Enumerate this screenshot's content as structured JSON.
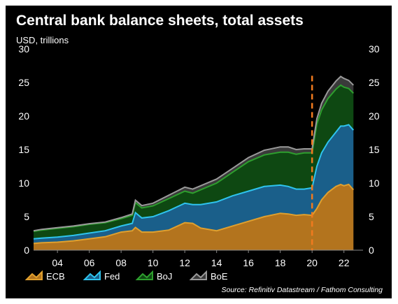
{
  "title": "Central bank balance sheets, total assets",
  "subtitle": "USD, trillions",
  "source": "Source: Refinitiv Datastream / Fathom Consulting",
  "colors": {
    "background": "#000000",
    "ECB": "#b3741e",
    "ECB_line": "#e0a02e",
    "Fed": "#1a5f8a",
    "Fed_line": "#2ec4ee",
    "BoJ": "#0e4812",
    "BoJ_line": "#2e9f2e",
    "BoE": "#3a3a3a",
    "BoE_line": "#9a9a9a",
    "marker": "#f07a1e"
  },
  "chart_data": {
    "type": "area",
    "stacked": true,
    "xlabel": "",
    "ylabel": "USD, trillions",
    "xlim": [
      2002.5,
      2023.2
    ],
    "ylim": [
      0,
      30
    ],
    "yticks": [
      0,
      5,
      10,
      15,
      20,
      25,
      30
    ],
    "xticks": [
      2004,
      2006,
      2008,
      2010,
      2012,
      2014,
      2016,
      2018,
      2020,
      2022
    ],
    "xtick_labels": [
      "04",
      "06",
      "08",
      "10",
      "12",
      "14",
      "16",
      "18",
      "20",
      "22"
    ],
    "secondary_y_axis": true,
    "grid": false,
    "legend_position": "bottom-left",
    "vertical_marker": {
      "x": 2020.0,
      "style": "dashed"
    },
    "x": [
      2002.5,
      2003.0,
      2004.0,
      2005.0,
      2006.0,
      2007.0,
      2008.0,
      2008.7,
      2008.9,
      2009.3,
      2010.0,
      2011.0,
      2012.0,
      2012.5,
      2013.0,
      2014.0,
      2015.0,
      2016.0,
      2017.0,
      2018.0,
      2018.5,
      2019.0,
      2019.5,
      2020.0,
      2020.3,
      2020.6,
      2021.0,
      2021.5,
      2021.8,
      2022.0,
      2022.3,
      2022.6
    ],
    "series": [
      {
        "name": "ECB",
        "values": [
          1.0,
          1.1,
          1.2,
          1.4,
          1.7,
          2.0,
          2.7,
          2.9,
          3.4,
          2.7,
          2.7,
          3.0,
          4.1,
          4.0,
          3.3,
          2.9,
          3.6,
          4.3,
          5.0,
          5.5,
          5.4,
          5.2,
          5.3,
          5.2,
          6.2,
          7.5,
          8.6,
          9.5,
          9.8,
          9.6,
          9.8,
          9.0
        ]
      },
      {
        "name": "Fed",
        "values": [
          0.7,
          0.7,
          0.75,
          0.8,
          0.85,
          0.9,
          0.9,
          1.1,
          2.2,
          2.1,
          2.3,
          2.9,
          2.9,
          2.8,
          3.5,
          4.3,
          4.5,
          4.5,
          4.5,
          4.2,
          4.1,
          3.9,
          3.8,
          4.1,
          6.3,
          7.0,
          7.5,
          8.1,
          8.7,
          8.9,
          8.9,
          8.9
        ]
      },
      {
        "name": "BoJ",
        "values": [
          1.1,
          1.2,
          1.3,
          1.3,
          1.3,
          1.2,
          1.1,
          1.2,
          1.5,
          1.5,
          1.6,
          1.8,
          1.8,
          1.7,
          2.2,
          2.8,
          3.5,
          4.4,
          4.7,
          4.9,
          5.1,
          5.2,
          5.4,
          5.2,
          6.3,
          6.4,
          6.5,
          6.4,
          6.1,
          5.8,
          5.4,
          5.5
        ]
      },
      {
        "name": "BoE",
        "values": [
          0.1,
          0.1,
          0.1,
          0.1,
          0.1,
          0.1,
          0.15,
          0.2,
          0.35,
          0.35,
          0.4,
          0.5,
          0.6,
          0.6,
          0.6,
          0.6,
          0.6,
          0.6,
          0.7,
          0.8,
          0.8,
          0.7,
          0.6,
          0.6,
          0.8,
          1.0,
          1.1,
          1.2,
          1.3,
          1.3,
          1.2,
          1.2
        ]
      }
    ]
  }
}
